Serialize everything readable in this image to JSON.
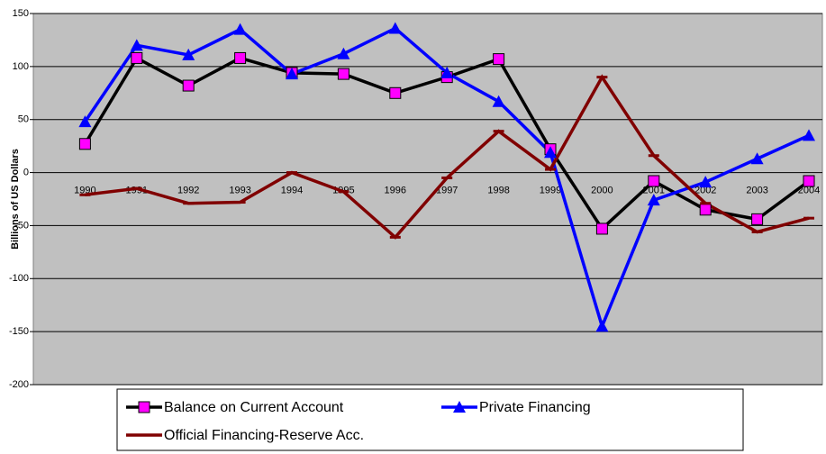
{
  "chart_data": {
    "type": "line",
    "y_axis_label": "Billions of US Dollars",
    "categories": [
      "1990",
      "1991",
      "1992",
      "1993",
      "1994",
      "1995",
      "1996",
      "1997",
      "1998",
      "1999",
      "2000",
      "2001",
      "2002",
      "2003",
      "2004"
    ],
    "series": [
      {
        "name": "Balance on Current Account",
        "color": "#000000",
        "marker": "square",
        "marker_color": "#ff00ff",
        "values": [
          27,
          108,
          82,
          108,
          94,
          93,
          75,
          90,
          107,
          22,
          -53,
          -8,
          -35,
          -44,
          -8
        ]
      },
      {
        "name": "Private Financing",
        "color": "#0000ff",
        "marker": "triangle",
        "marker_color": "#0000ff",
        "values": [
          48,
          120,
          111,
          135,
          93,
          112,
          136,
          94,
          67,
          19,
          -145,
          -26,
          -9,
          13,
          35
        ]
      },
      {
        "name": "Official Financing-Reserve Acc.",
        "color": "#800000",
        "marker": "dash",
        "marker_color": "#800000",
        "values": [
          -21,
          -15,
          -29,
          -28,
          0,
          -18,
          -61,
          -5,
          39,
          3,
          90,
          16,
          -29,
          -56,
          -43
        ]
      }
    ],
    "ylim": [
      -200,
      150
    ],
    "yticks": [
      -200,
      -150,
      -100,
      -50,
      0,
      50,
      100,
      150
    ],
    "grid": true,
    "background": "#c0c0c0"
  }
}
